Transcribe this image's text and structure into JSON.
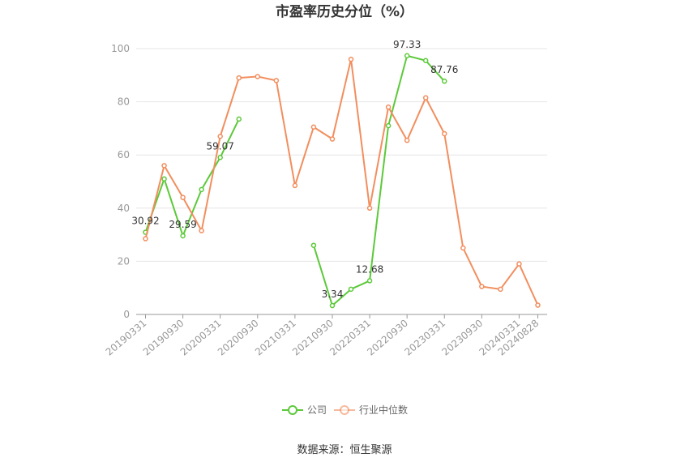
{
  "chart_data": {
    "type": "line",
    "title": "市盈率历史分位（%）",
    "source": "数据来源：恒生聚源",
    "ylim": [
      0,
      100
    ],
    "y_ticks": [
      "0",
      "20",
      "40",
      "60",
      "80",
      "100"
    ],
    "x_tick_labels": [
      "20190331",
      "20190930",
      "20200331",
      "20200930",
      "20210331",
      "20210930",
      "20220331",
      "20220930",
      "20230331",
      "20230930",
      "20240331",
      "20240828"
    ],
    "x": [
      "20190331",
      "20190630",
      "20190930",
      "20191231",
      "20200331",
      "20200630",
      "20200930",
      "20201231",
      "20210331",
      "20210630",
      "20210930",
      "20211231",
      "20220331",
      "20220630",
      "20220930",
      "20221231",
      "20230331",
      "20230630",
      "20230930",
      "20231231",
      "20240331",
      "20240828"
    ],
    "series": [
      {
        "name": "公司",
        "color": "#5cc93a",
        "values": [
          30.92,
          51,
          29.59,
          47,
          59.07,
          73.5,
          null,
          null,
          null,
          26,
          3.34,
          9.5,
          12.68,
          71,
          97.33,
          95.5,
          87.76,
          null,
          null,
          null,
          null,
          null
        ],
        "labels": {
          "0": "30.92",
          "2": "29.59",
          "4": "59.07",
          "10": "3.34",
          "12": "12.68",
          "14": "97.33",
          "16": "87.76"
        }
      },
      {
        "name": "行业中位数",
        "color": "#f28e5e",
        "values": [
          28.5,
          56,
          44,
          31.5,
          67,
          89,
          89.5,
          88,
          48.5,
          70.5,
          66,
          96,
          40,
          78,
          65.5,
          81.5,
          68,
          25,
          10.5,
          9.5,
          19,
          3.5
        ],
        "labels": {}
      }
    ],
    "legend": {
      "position": "bottom-center"
    },
    "grid": true
  }
}
